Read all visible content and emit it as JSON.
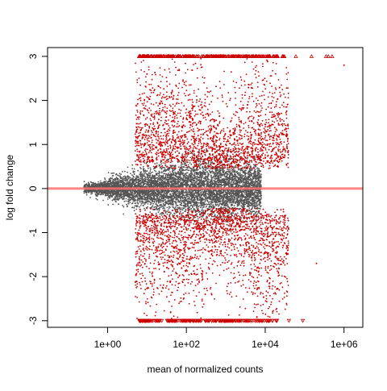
{
  "chart_data": {
    "type": "scatter",
    "title": "",
    "xlabel": "mean of normalized counts",
    "ylabel": "log fold change",
    "x_scale": "log10",
    "xlim": [
      0.03,
      3000000
    ],
    "ylim": [
      -3.15,
      3.2
    ],
    "x_ticks": [
      {
        "value": 1,
        "label": "1e+00"
      },
      {
        "value": 100,
        "label": "1e+02"
      },
      {
        "value": 10000,
        "label": "1e+04"
      },
      {
        "value": 1000000,
        "label": "1e+06"
      }
    ],
    "y_ticks": [
      {
        "value": -3,
        "label": "-3"
      },
      {
        "value": -2,
        "label": "-2"
      },
      {
        "value": -1,
        "label": "-1"
      },
      {
        "value": 0,
        "label": "0"
      },
      {
        "value": 1,
        "label": "1"
      },
      {
        "value": 2,
        "label": "2"
      },
      {
        "value": 3,
        "label": "3"
      }
    ],
    "reference_line": {
      "y": 0,
      "color": "#ff7070"
    },
    "colors": {
      "not_significant": "#555555",
      "significant": "#cc0000",
      "reference_line": "#ff7070",
      "axis": "#000000"
    },
    "clipped_point_markers": {
      "upper": "triangle-up",
      "lower": "triangle-down",
      "upper_y": 3,
      "lower_y": -3
    },
    "series": [
      {
        "color": "#555555",
        "density_model": {
          "x_log10_range": [
            -0.6,
            3.9
          ],
          "peak_log10": 2.2,
          "spread_rule": "narrow at low counts, widest near 1e+02"
        },
        "points": [
          {
            "x": 0.3,
            "y": 0.08
          },
          {
            "x": 0.5,
            "y": -0.05
          },
          {
            "x": 1,
            "y": 0.12
          },
          {
            "x": 10,
            "y": 0.6
          },
          {
            "x": 30,
            "y": -0.55
          },
          {
            "x": 100,
            "y": 0.3
          },
          {
            "x": 1000,
            "y": -0.2
          },
          {
            "x": 5000,
            "y": 0.1
          }
        ]
      },
      {
        "color": "#cc0000",
        "density_model": {
          "x_log10_range": [
            0.7,
            4.6
          ],
          "clusters": [
            {
              "center_log10": 3.0,
              "y": 0.9
            },
            {
              "center_log10": 3.0,
              "y": -0.9
            }
          ]
        },
        "points": [
          {
            "x": 10,
            "y": 2.6
          },
          {
            "x": 100,
            "y": 1.8
          },
          {
            "x": 1000,
            "y": 1.0
          },
          {
            "x": 1000,
            "y": -1.0
          },
          {
            "x": 300,
            "y": -2.4
          },
          {
            "x": 20000,
            "y": 1.7
          },
          {
            "x": 200000,
            "y": -1.7
          },
          {
            "x": 1000000,
            "y": 2.8
          },
          {
            "x": 8000,
            "y": 3
          },
          {
            "x": 100000,
            "y": 3
          },
          {
            "x": 3000,
            "y": -3
          }
        ]
      }
    ]
  }
}
